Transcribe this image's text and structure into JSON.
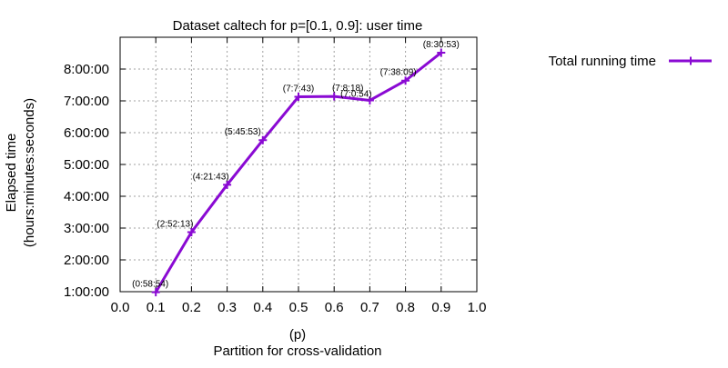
{
  "chart_data": {
    "type": "line",
    "title": "Dataset caltech for p=[0.1, 0.9]: user time",
    "xlabel_line1": "(p)",
    "xlabel_line2": "Partition for cross-validation",
    "ylabel_line1": "Elapsed time",
    "ylabel_line2": "(hours:minutes:seconds)",
    "xlim": [
      0.0,
      1.0
    ],
    "ylim_seconds": [
      3600,
      32400
    ],
    "x_ticks": [
      "0.0",
      "0.1",
      "0.2",
      "0.3",
      "0.4",
      "0.5",
      "0.6",
      "0.7",
      "0.8",
      "0.9",
      "1.0"
    ],
    "y_ticks": [
      "1:00:00",
      "2:00:00",
      "3:00:00",
      "4:00:00",
      "5:00:00",
      "6:00:00",
      "7:00:00",
      "8:00:00"
    ],
    "grid": true,
    "legend_position": "top-right, outside plot",
    "series": [
      {
        "name": "Total running time",
        "color": "#8a0ad3",
        "x": [
          0.1,
          0.2,
          0.3,
          0.4,
          0.5,
          0.6,
          0.7,
          0.8,
          0.9
        ],
        "y_seconds": [
          3534,
          10333,
          15703,
          20753,
          25663,
          25698,
          25254,
          27489,
          30653
        ],
        "point_labels": [
          "(0:58:54)",
          "(2:52:13)",
          "(4:21:43)",
          "(5:45:53)",
          "(7:7:43)",
          "(7:8:18)",
          "(7:0:54)",
          "(7:38:09)",
          "(8:30:53)"
        ]
      }
    ]
  }
}
